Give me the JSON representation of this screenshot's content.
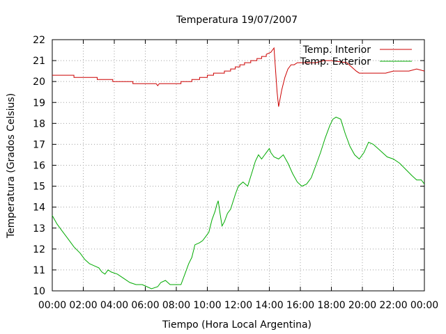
{
  "chart_data": {
    "type": "line",
    "title": "Temperatura 19/07/2007",
    "xlabel": "Tiempo (Hora Local Argentina)",
    "ylabel": "Temperatura (Grados Celsius)",
    "xlim": [
      0,
      24
    ],
    "ylim": [
      10,
      22
    ],
    "x_unit": "hours",
    "x_ticks": [
      "00:00",
      "02:00",
      "04:00",
      "06:00",
      "08:00",
      "10:00",
      "12:00",
      "14:00",
      "16:00",
      "18:00",
      "20:00",
      "22:00",
      "00:00"
    ],
    "y_ticks": [
      "10",
      "11",
      "12",
      "13",
      "14",
      "15",
      "16",
      "17",
      "18",
      "19",
      "20",
      "21",
      "22"
    ],
    "grid": true,
    "legend_position": "top-right",
    "series": [
      {
        "name": "Temp. Interior",
        "color": "#cc0000",
        "x": [
          0,
          1.4,
          1.4,
          2.9,
          2.9,
          3.9,
          3.9,
          5.2,
          5.2,
          6.7,
          6.8,
          6.9,
          6.9,
          8.3,
          8.3,
          9.0,
          9.0,
          9.5,
          9.5,
          10.0,
          10.0,
          10.4,
          10.4,
          11.1,
          11.1,
          11.5,
          11.5,
          11.8,
          11.8,
          12.1,
          12.1,
          12.4,
          12.4,
          12.8,
          12.8,
          13.2,
          13.2,
          13.5,
          13.5,
          13.8,
          13.8,
          14.1,
          14.2,
          14.3,
          14.5,
          14.6,
          14.8,
          15.0,
          15.2,
          15.4,
          15.6,
          15.8,
          16.2,
          17.0,
          17.5,
          18.0,
          19.0,
          19.3,
          19.6,
          19.8,
          20.0,
          20.3,
          20.6,
          21.0,
          21.5,
          22.0,
          22.5,
          23.0,
          23.5,
          24.0
        ],
        "y": [
          20.3,
          20.3,
          20.2,
          20.2,
          20.1,
          20.1,
          20.0,
          20.0,
          19.9,
          19.9,
          19.8,
          19.9,
          19.9,
          19.9,
          20.0,
          20.0,
          20.1,
          20.1,
          20.2,
          20.2,
          20.3,
          20.3,
          20.4,
          20.4,
          20.5,
          20.5,
          20.6,
          20.6,
          20.7,
          20.7,
          20.8,
          20.8,
          20.9,
          20.9,
          21.0,
          21.0,
          21.1,
          21.1,
          21.2,
          21.2,
          21.3,
          21.4,
          21.5,
          21.6,
          19.5,
          18.8,
          19.6,
          20.2,
          20.6,
          20.8,
          20.8,
          20.9,
          20.9,
          20.9,
          21.0,
          21.0,
          20.9,
          20.7,
          20.5,
          20.4,
          20.4,
          20.4,
          20.4,
          20.4,
          20.4,
          20.5,
          20.5,
          20.5,
          20.6,
          20.5
        ]
      },
      {
        "name": "Temp. Exterior",
        "color": "#00aa00",
        "x": [
          0,
          0.3,
          0.6,
          1.0,
          1.4,
          1.8,
          2.1,
          2.4,
          2.7,
          3.0,
          3.2,
          3.4,
          3.6,
          3.8,
          4.2,
          4.6,
          5.0,
          5.4,
          5.8,
          6.1,
          6.4,
          6.8,
          7.0,
          7.3,
          7.6,
          8.0,
          8.3,
          8.6,
          8.8,
          9.0,
          9.2,
          9.5,
          9.7,
          9.9,
          10.1,
          10.3,
          10.5,
          10.6,
          10.7,
          10.8,
          10.95,
          11.1,
          11.3,
          11.5,
          11.8,
          12.0,
          12.3,
          12.6,
          12.9,
          13.1,
          13.3,
          13.5,
          13.7,
          13.9,
          14.0,
          14.1,
          14.3,
          14.6,
          14.9,
          15.2,
          15.5,
          15.8,
          16.1,
          16.4,
          16.7,
          17.0,
          17.3,
          17.6,
          17.9,
          18.1,
          18.3,
          18.6,
          18.9,
          19.2,
          19.5,
          19.8,
          20.1,
          20.4,
          20.7,
          21.0,
          21.3,
          21.6,
          22.0,
          22.4,
          22.8,
          23.2,
          23.5,
          23.8,
          24.0
        ],
        "y": [
          13.6,
          13.2,
          12.9,
          12.5,
          12.1,
          11.8,
          11.5,
          11.3,
          11.2,
          11.1,
          10.9,
          10.8,
          11.0,
          10.9,
          10.8,
          10.6,
          10.4,
          10.3,
          10.3,
          10.2,
          10.1,
          10.2,
          10.4,
          10.5,
          10.3,
          10.3,
          10.3,
          10.9,
          11.3,
          11.6,
          12.2,
          12.3,
          12.4,
          12.6,
          12.8,
          13.4,
          13.8,
          14.1,
          14.3,
          13.8,
          13.1,
          13.3,
          13.7,
          13.9,
          14.6,
          15.0,
          15.2,
          15.0,
          15.7,
          16.2,
          16.5,
          16.3,
          16.5,
          16.7,
          16.8,
          16.6,
          16.4,
          16.3,
          16.5,
          16.1,
          15.6,
          15.2,
          15.0,
          15.1,
          15.4,
          16.0,
          16.6,
          17.3,
          17.9,
          18.2,
          18.3,
          18.2,
          17.5,
          16.9,
          16.5,
          16.3,
          16.6,
          17.1,
          17.0,
          16.8,
          16.6,
          16.4,
          16.3,
          16.1,
          15.8,
          15.5,
          15.3,
          15.3,
          15.1
        ]
      }
    ]
  }
}
